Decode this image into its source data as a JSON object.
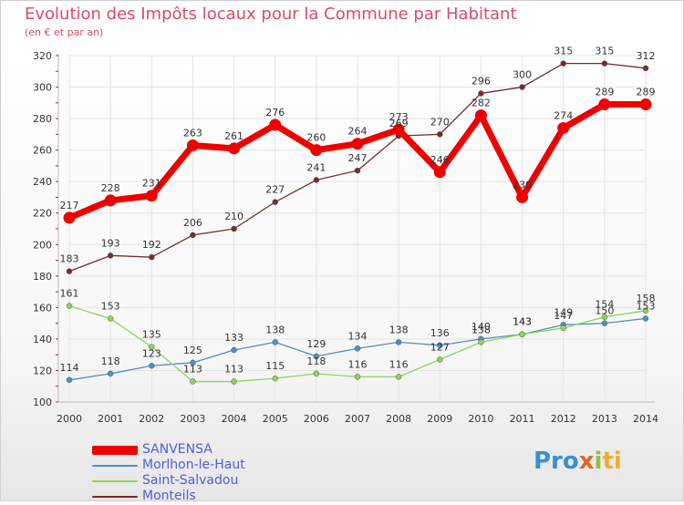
{
  "title": "Evolution des Impôts locaux pour la Commune par Habitant",
  "subtitle": "(en € et par an)",
  "brand": [
    "Pro",
    "x",
    "i",
    "ti"
  ],
  "chart_data": {
    "type": "line",
    "x": [
      "2000",
      "2001",
      "2002",
      "2003",
      "2004",
      "2005",
      "2006",
      "2007",
      "2008",
      "2009",
      "2010",
      "2011",
      "2012",
      "2013",
      "2014"
    ],
    "ylim": [
      100,
      320
    ],
    "yticks": [
      "100",
      "120",
      "140",
      "160",
      "180",
      "200",
      "220",
      "240",
      "260",
      "280",
      "300",
      "320"
    ],
    "grid": true,
    "legend_position": "bottom-left",
    "series": [
      {
        "name": "SANVENSA",
        "color": "#ee0000",
        "bold": true,
        "values": [
          217,
          228,
          231,
          263,
          261,
          276,
          260,
          264,
          273,
          246,
          282,
          230,
          274,
          289,
          289
        ],
        "labels": [
          "217",
          "228",
          "231",
          "263",
          "261",
          "276",
          "260",
          "264",
          "273",
          "246",
          "282",
          "230",
          "274",
          "289",
          "289"
        ]
      },
      {
        "name": "Morlhon-le-Haut",
        "color": "#4f8fc8",
        "bold": false,
        "values": [
          114,
          118,
          123,
          125,
          133,
          138,
          129,
          134,
          138,
          136,
          140,
          143,
          149,
          150,
          153
        ],
        "labels": [
          "114",
          "118",
          "123",
          "125",
          "133",
          "138",
          "129",
          "134",
          "138",
          "136",
          "140",
          "143",
          "149",
          "150",
          "153"
        ]
      },
      {
        "name": "Saint-Salvadou",
        "color": "#8fd45a",
        "bold": false,
        "values": [
          161,
          153,
          135,
          113,
          113,
          115,
          118,
          116,
          116,
          127,
          138,
          143,
          147,
          154,
          158
        ],
        "labels": [
          "161",
          "153",
          "135",
          "113",
          "113",
          "115",
          "118",
          "116",
          "116",
          "127",
          "138",
          "143",
          "147",
          "154",
          "158"
        ]
      },
      {
        "name": "Monteils",
        "color": "#7a2a2a",
        "bold": false,
        "values": [
          183,
          193,
          192,
          206,
          210,
          227,
          241,
          247,
          269,
          270,
          296,
          300,
          315,
          315,
          312
        ],
        "labels": [
          "183",
          "193",
          "192",
          "206",
          "210",
          "227",
          "241",
          "247",
          "269",
          "270",
          "296",
          "300",
          "315",
          "315",
          "312"
        ]
      }
    ]
  }
}
